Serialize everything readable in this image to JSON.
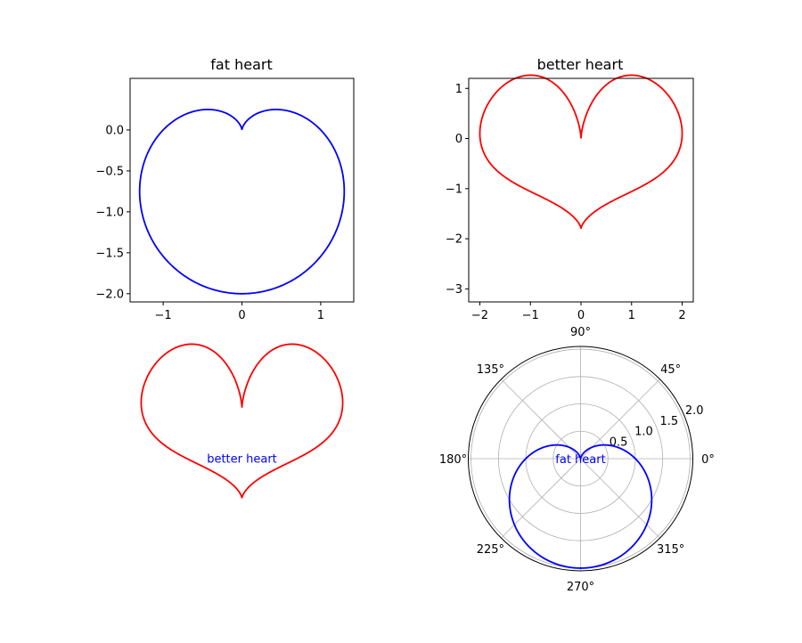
{
  "chart_data": [
    {
      "type": "line",
      "title": "fat heart",
      "curve": "fat_heart",
      "color": "#0000ff",
      "xlim": [
        -1.42,
        1.42
      ],
      "ylim": [
        -2.1,
        0.63
      ],
      "x_ticks": [
        {
          "value": -1,
          "label": "−1"
        },
        {
          "value": 0,
          "label": "0"
        },
        {
          "value": 1,
          "label": "1"
        }
      ],
      "y_ticks": [
        {
          "value": 0.0,
          "label": "0.0"
        },
        {
          "value": -0.5,
          "label": "−0.5"
        },
        {
          "value": -1.0,
          "label": "−1.0"
        },
        {
          "value": -1.5,
          "label": "−1.5"
        },
        {
          "value": -2.0,
          "label": "−2.0"
        }
      ],
      "grid": false
    },
    {
      "type": "line",
      "title": "better heart",
      "curve": "better_heart",
      "color": "#ff0000",
      "xlim": [
        -2.22,
        2.22
      ],
      "ylim": [
        -3.26,
        1.2
      ],
      "x_ticks": [
        {
          "value": -2,
          "label": "−2"
        },
        {
          "value": -1,
          "label": "−1"
        },
        {
          "value": 0,
          "label": "0"
        },
        {
          "value": 1,
          "label": "1"
        },
        {
          "value": 2,
          "label": "2"
        }
      ],
      "y_ticks": [
        {
          "value": 1,
          "label": "1"
        },
        {
          "value": 0,
          "label": "0"
        },
        {
          "value": -1,
          "label": "−1"
        },
        {
          "value": -2,
          "label": "−2"
        },
        {
          "value": -3,
          "label": "−3"
        }
      ],
      "grid": false
    },
    {
      "type": "line",
      "title": "",
      "curve": "better_heart",
      "color": "#ff0000",
      "axes_visible": false,
      "xlim": [
        -2.22,
        2.22
      ],
      "ylim": [
        -3.26,
        1.2
      ],
      "annotation": {
        "text": "better heart",
        "x": 0,
        "y": -1.0,
        "color": "#0000ff"
      }
    },
    {
      "type": "polar",
      "title": "",
      "curve": "cardioid",
      "color": "#0000ff",
      "rlim": [
        0,
        2.05
      ],
      "r_ticks": [
        {
          "value": 0.5,
          "label": "0.5"
        },
        {
          "value": 1.0,
          "label": "1.0"
        },
        {
          "value": 1.5,
          "label": "1.5"
        },
        {
          "value": 2.0,
          "label": "2.0"
        }
      ],
      "theta_ticks": [
        {
          "value": 0,
          "label": "0°"
        },
        {
          "value": 45,
          "label": "45°"
        },
        {
          "value": 90,
          "label": "90°"
        },
        {
          "value": 135,
          "label": "135°"
        },
        {
          "value": 180,
          "label": "180°"
        },
        {
          "value": 225,
          "label": "225°"
        },
        {
          "value": 270,
          "label": "270°"
        },
        {
          "value": 315,
          "label": "315°"
        }
      ],
      "grid": true,
      "annotation": {
        "text": "fat heart",
        "x": 0,
        "y": 0,
        "color": "#0000ff"
      }
    }
  ]
}
